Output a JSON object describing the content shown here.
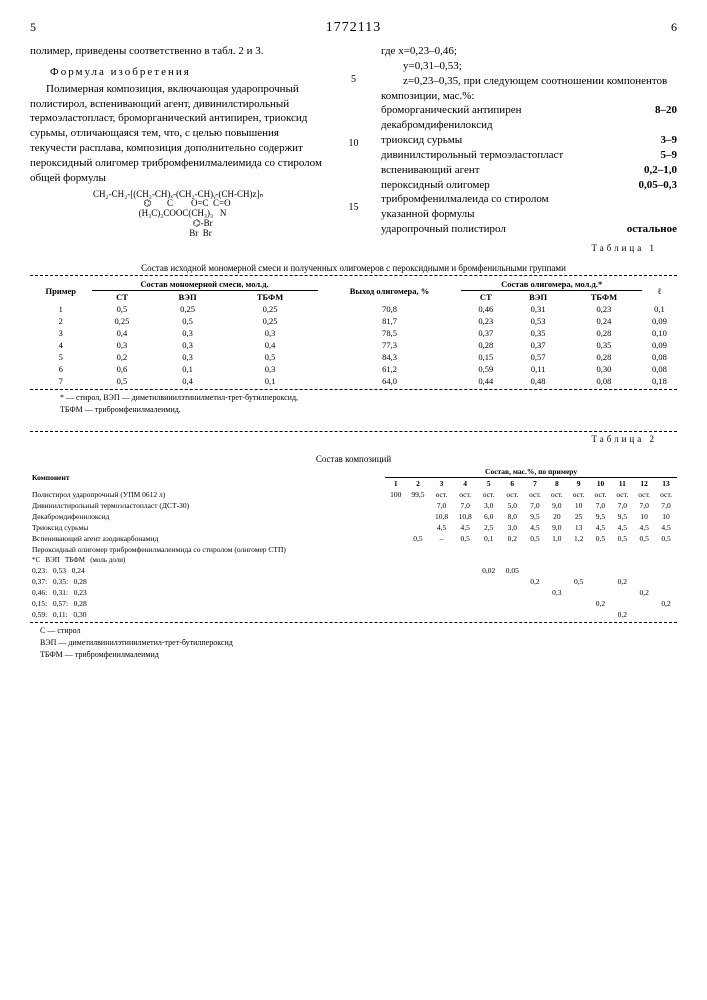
{
  "header": {
    "page_left": "5",
    "patent": "1772113",
    "page_right": "6"
  },
  "left_col": {
    "intro": "полимер, приведены соответственно в табл. 2 и 3.",
    "formula_title": "Формула изобретения",
    "body": "Полимерная композиция, включающая ударопрочный полистирол, вспенивающий агент, дивинилстирольный термоэластопласт, броморганический антипирен, триоксид сурьмы, отличающаяся тем, что, с целью повышения текучести расплава, композиция дополнительно содержит пероксидный олигомер трибромфенилмалеимида со стиролом общей формулы",
    "structure": "CH₂-CH₂-[(CH₂-CH)ₓ-(CH₂-CH)ᵧ-(CH-CH)z]ₙ\n        ⌬       C        O=C  C=O\n    (H₃C)₃COOC(CH₃)₃   N\n                      ⌬-Br\n                    Br  Br"
  },
  "right_col": {
    "where": "где",
    "x": "x=0,23–0,46;",
    "y": "y=0,31–0,53;",
    "z": "z=0,23–0,35, при следующем соотношении компонентов композиции, мас.%:",
    "items": [
      {
        "label": "броморганический антипирен декабромдифенилоксид",
        "val": "8–20"
      },
      {
        "label": "триоксид сурьмы",
        "val": "3–9"
      },
      {
        "label": "дивинилстирольный термоэластопласт",
        "val": "5–9"
      },
      {
        "label": "вспенивающий агент",
        "val": "0,2–1,0"
      },
      {
        "label": "пероксидный олигомер трибромфенилмалеида со стиролом указанной формулы",
        "val": "0,05–0,3"
      },
      {
        "label": "ударопрочный полистирол",
        "val": "остальное"
      }
    ]
  },
  "markers": [
    "5",
    "10",
    "15"
  ],
  "table1": {
    "label": "Таблица 1",
    "title": "Состав исходной мономерной смеси и полученных олигомеров с пероксидными и бромфенильными группами",
    "head1": [
      "Пример",
      "Состав мономерной смеси, мол.д.",
      "Выход олигомера, %",
      "Состав олигомера, мол.д.*",
      ""
    ],
    "head2": [
      "",
      "СТ",
      "ВЭП",
      "ТБФМ",
      "",
      "СТ",
      "ВЭП",
      "ТБФМ",
      "ℓ"
    ],
    "rows": [
      [
        "1",
        "0,5",
        "0,25",
        "0,25",
        "70,8",
        "0,46",
        "0,31",
        "0,23",
        "0,1"
      ],
      [
        "2",
        "0,25",
        "0,5",
        "0,25",
        "81,7",
        "0,23",
        "0,53",
        "0,24",
        "0,09"
      ],
      [
        "3",
        "0,4",
        "0,3",
        "0,3",
        "78,5",
        "0,37",
        "0,35",
        "0,28",
        "0,10"
      ],
      [
        "4",
        "0,3",
        "0,3",
        "0,4",
        "77,3",
        "0,28",
        "0,37",
        "0,35",
        "0,09"
      ],
      [
        "5",
        "0,2",
        "0,3",
        "0,5",
        "84,3",
        "0,15",
        "0,57",
        "0,28",
        "0,08"
      ],
      [
        "6",
        "0,6",
        "0,1",
        "0,3",
        "61,2",
        "0,59",
        "0,11",
        "0,30",
        "0,08"
      ],
      [
        "7",
        "0,5",
        "0,4",
        "0,1",
        "64,0",
        "0,44",
        "0,48",
        "0,08",
        "0,18"
      ]
    ],
    "foot1": "* — стирол, ВЭП — диметилвинилэтинилметил-трет-бутилпероксид,",
    "foot2": "ТБФМ — трибромфенилмалеимид."
  },
  "table2": {
    "label": "Таблица 2",
    "title": "Состав композиций",
    "head_top": "Состав, мас.%, по примеру",
    "cols": [
      "1",
      "2",
      "3",
      "4",
      "5",
      "6",
      "7",
      "8",
      "9",
      "10",
      "11",
      "12",
      "13"
    ],
    "rows": [
      {
        "lbl": "Полистирол ударопрочный (УПМ 0612 л)",
        "v": [
          "100",
          "99,5",
          "ост.",
          "ост.",
          "ост.",
          "ост.",
          "ост.",
          "ост.",
          "ост.",
          "ост.",
          "ост.",
          "ост.",
          "ост."
        ]
      },
      {
        "lbl": "Дивинилстирольный термоэластопласт (ДСТ-30)",
        "v": [
          "",
          "",
          "7,0",
          "7,0",
          "3,0",
          "5,0",
          "7,0",
          "9,0",
          "10",
          "7,0",
          "7,0",
          "7,0",
          "7,0"
        ]
      },
      {
        "lbl": "Декабромдифенилоксид",
        "v": [
          "",
          "",
          "10,8",
          "10,8",
          "6,0",
          "8,0",
          "9,5",
          "20",
          "25",
          "9,5",
          "9,5",
          "10",
          "10"
        ]
      },
      {
        "lbl": "Триоксид сурьмы",
        "v": [
          "",
          "",
          "4,5",
          "4,5",
          "2,5",
          "3,0",
          "4,5",
          "9,0",
          "13",
          "4,5",
          "4,5",
          "4,5",
          "4,5"
        ]
      },
      {
        "lbl": "Вспенивающий агент азодикарбонамид",
        "v": [
          "",
          "0,5",
          "–",
          "0,5",
          "0,1",
          "0,2",
          "0,5",
          "1,0",
          "1,2",
          "0,5",
          "0,5",
          "0,5",
          "0,5"
        ]
      },
      {
        "lbl": "Пероксидный олигомер трибромфенилмалеимида со стиролом (олигомер СТП)",
        "v": [
          "",
          "",
          "",
          "",
          "",
          "",
          "",
          "",
          "",
          "",
          "",
          "",
          ""
        ]
      }
    ],
    "ratios_head": [
      "*С",
      "ВЭП",
      "ТБФМ",
      "(моль доли)"
    ],
    "ratios": [
      {
        "a": "0,23:",
        "b": "0,53",
        "c": "0,24",
        "v": [
          "",
          "",
          "",
          "",
          "0,02",
          "0,05",
          "",
          "",
          "",
          "",
          "",
          "",
          ""
        ]
      },
      {
        "a": "0,37:",
        "b": "0,35:",
        "c": "0,28",
        "v": [
          "",
          "",
          "",
          "",
          "",
          "",
          "0,2",
          "",
          "0,5",
          "",
          "0,2",
          "",
          ""
        ]
      },
      {
        "a": "0,46:",
        "b": "0,31:",
        "c": "0,23",
        "v": [
          "",
          "",
          "",
          "",
          "",
          "",
          "",
          "0,3",
          "",
          "",
          "",
          "0,2",
          ""
        ]
      },
      {
        "a": "0,15:",
        "b": "0,57:",
        "c": "0,28",
        "v": [
          "",
          "",
          "",
          "",
          "",
          "",
          "",
          "",
          "",
          "0,2",
          "",
          "",
          "0,2"
        ]
      },
      {
        "a": "0,59:",
        "b": "0,11:",
        "c": "0,30",
        "v": [
          "",
          "",
          "",
          "",
          "",
          "",
          "",
          "",
          "",
          "",
          "0,2",
          "",
          ""
        ]
      }
    ],
    "foot": [
      "С — стирол",
      "ВЭП — диметилвинилэтинилметил-трет-бутилпероксид",
      "ТБФМ — трибромфенилмалеимид"
    ]
  }
}
